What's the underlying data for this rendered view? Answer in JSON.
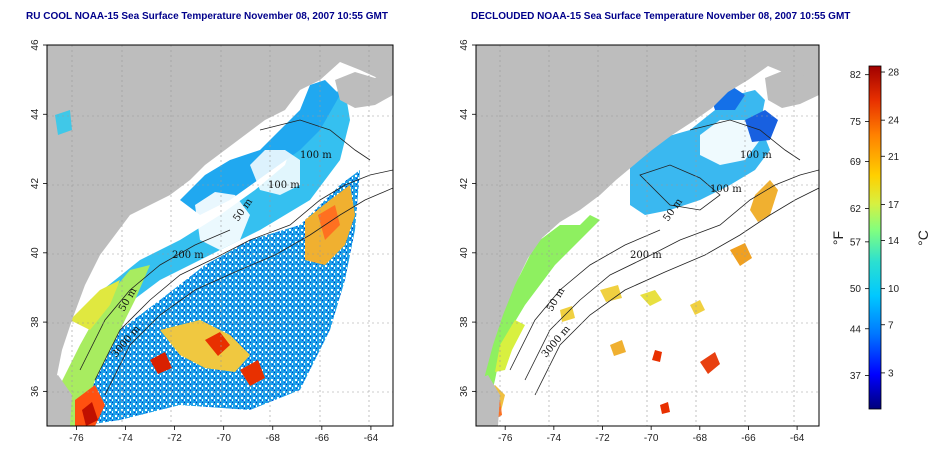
{
  "panels": [
    {
      "id": "left",
      "title": "RU COOL NOAA-15 Sea Surface Temperature November 08, 2007 10:55 GMT"
    },
    {
      "id": "right",
      "title": "DECLOUDED NOAA-15 Sea Surface Temperature November 08, 2007 10:55 GMT"
    }
  ],
  "axes": {
    "lon_ticks": [
      "-76",
      "-74",
      "-72",
      "-70",
      "-68",
      "-66",
      "-64"
    ],
    "lat_ticks": [
      "36",
      "38",
      "40",
      "42",
      "44",
      "46"
    ],
    "lon_range": [
      -77.2,
      -63.1
    ],
    "lat_range": [
      35.0,
      46.0
    ]
  },
  "contour_labels": {
    "left": [
      "100 m",
      "100 m",
      "50 m",
      "200 m",
      "50 m",
      "3000 m"
    ],
    "right": [
      "100 m",
      "100 m",
      "50 m",
      "200 m",
      "50 m",
      "3000 m"
    ]
  },
  "colorbar": {
    "fahrenheit_label": "°F",
    "celsius_label": "°C",
    "fahrenheit_ticks": [
      "82",
      "75",
      "69",
      "62",
      "57",
      "50",
      "44",
      "37"
    ],
    "celsius_ticks": [
      "28",
      "24",
      "21",
      "17",
      "14",
      "10",
      "7",
      "3"
    ],
    "celsius_range": [
      0,
      28.5
    ],
    "colors": [
      "#00007a",
      "#0000ff",
      "#0078ff",
      "#00c8ff",
      "#2ce0d0",
      "#80ff80",
      "#d8f040",
      "#ffd000",
      "#ff8000",
      "#e83000",
      "#a00000"
    ]
  },
  "colors": {
    "land": "#bdbdbd",
    "ocean_no_data": "#ffffff",
    "title": "#00008b",
    "grid": "#9a9a9a"
  }
}
